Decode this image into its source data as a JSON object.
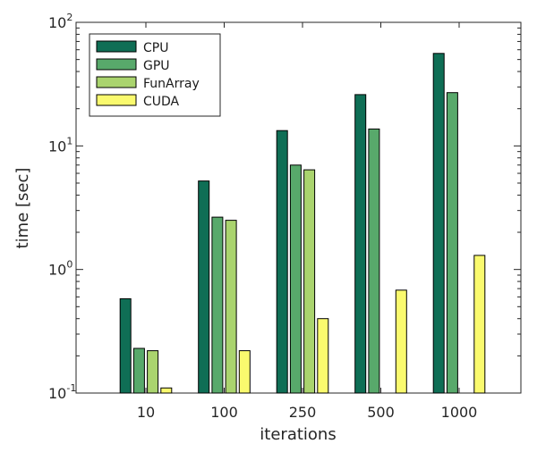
{
  "chart_data": {
    "type": "bar",
    "title": "",
    "xlabel": "iterations",
    "ylabel": "time [sec]",
    "yscale": "log",
    "ylim": [
      0.1,
      100
    ],
    "yticks": [
      {
        "value": 0.1,
        "base": "10",
        "exp": "-1"
      },
      {
        "value": 1,
        "base": "10",
        "exp": "0"
      },
      {
        "value": 10,
        "base": "10",
        "exp": "1"
      },
      {
        "value": 100,
        "base": "10",
        "exp": "2"
      }
    ],
    "grid": false,
    "legend_position": "top-left",
    "categories": [
      "10",
      "100",
      "250",
      "500",
      "1000"
    ],
    "series": [
      {
        "name": "CPU",
        "color": "#0f6e55",
        "values": [
          0.58,
          5.2,
          13.3,
          26,
          56
        ]
      },
      {
        "name": "GPU",
        "color": "#58a96b",
        "values": [
          0.23,
          2.65,
          7.0,
          13.7,
          27
        ]
      },
      {
        "name": "FunArray",
        "color": "#aad46e",
        "values": [
          0.22,
          2.5,
          6.4,
          null,
          null
        ]
      },
      {
        "name": "CUDA",
        "color": "#fafa6e",
        "values": [
          0.11,
          0.22,
          0.4,
          0.68,
          1.3
        ]
      }
    ]
  }
}
